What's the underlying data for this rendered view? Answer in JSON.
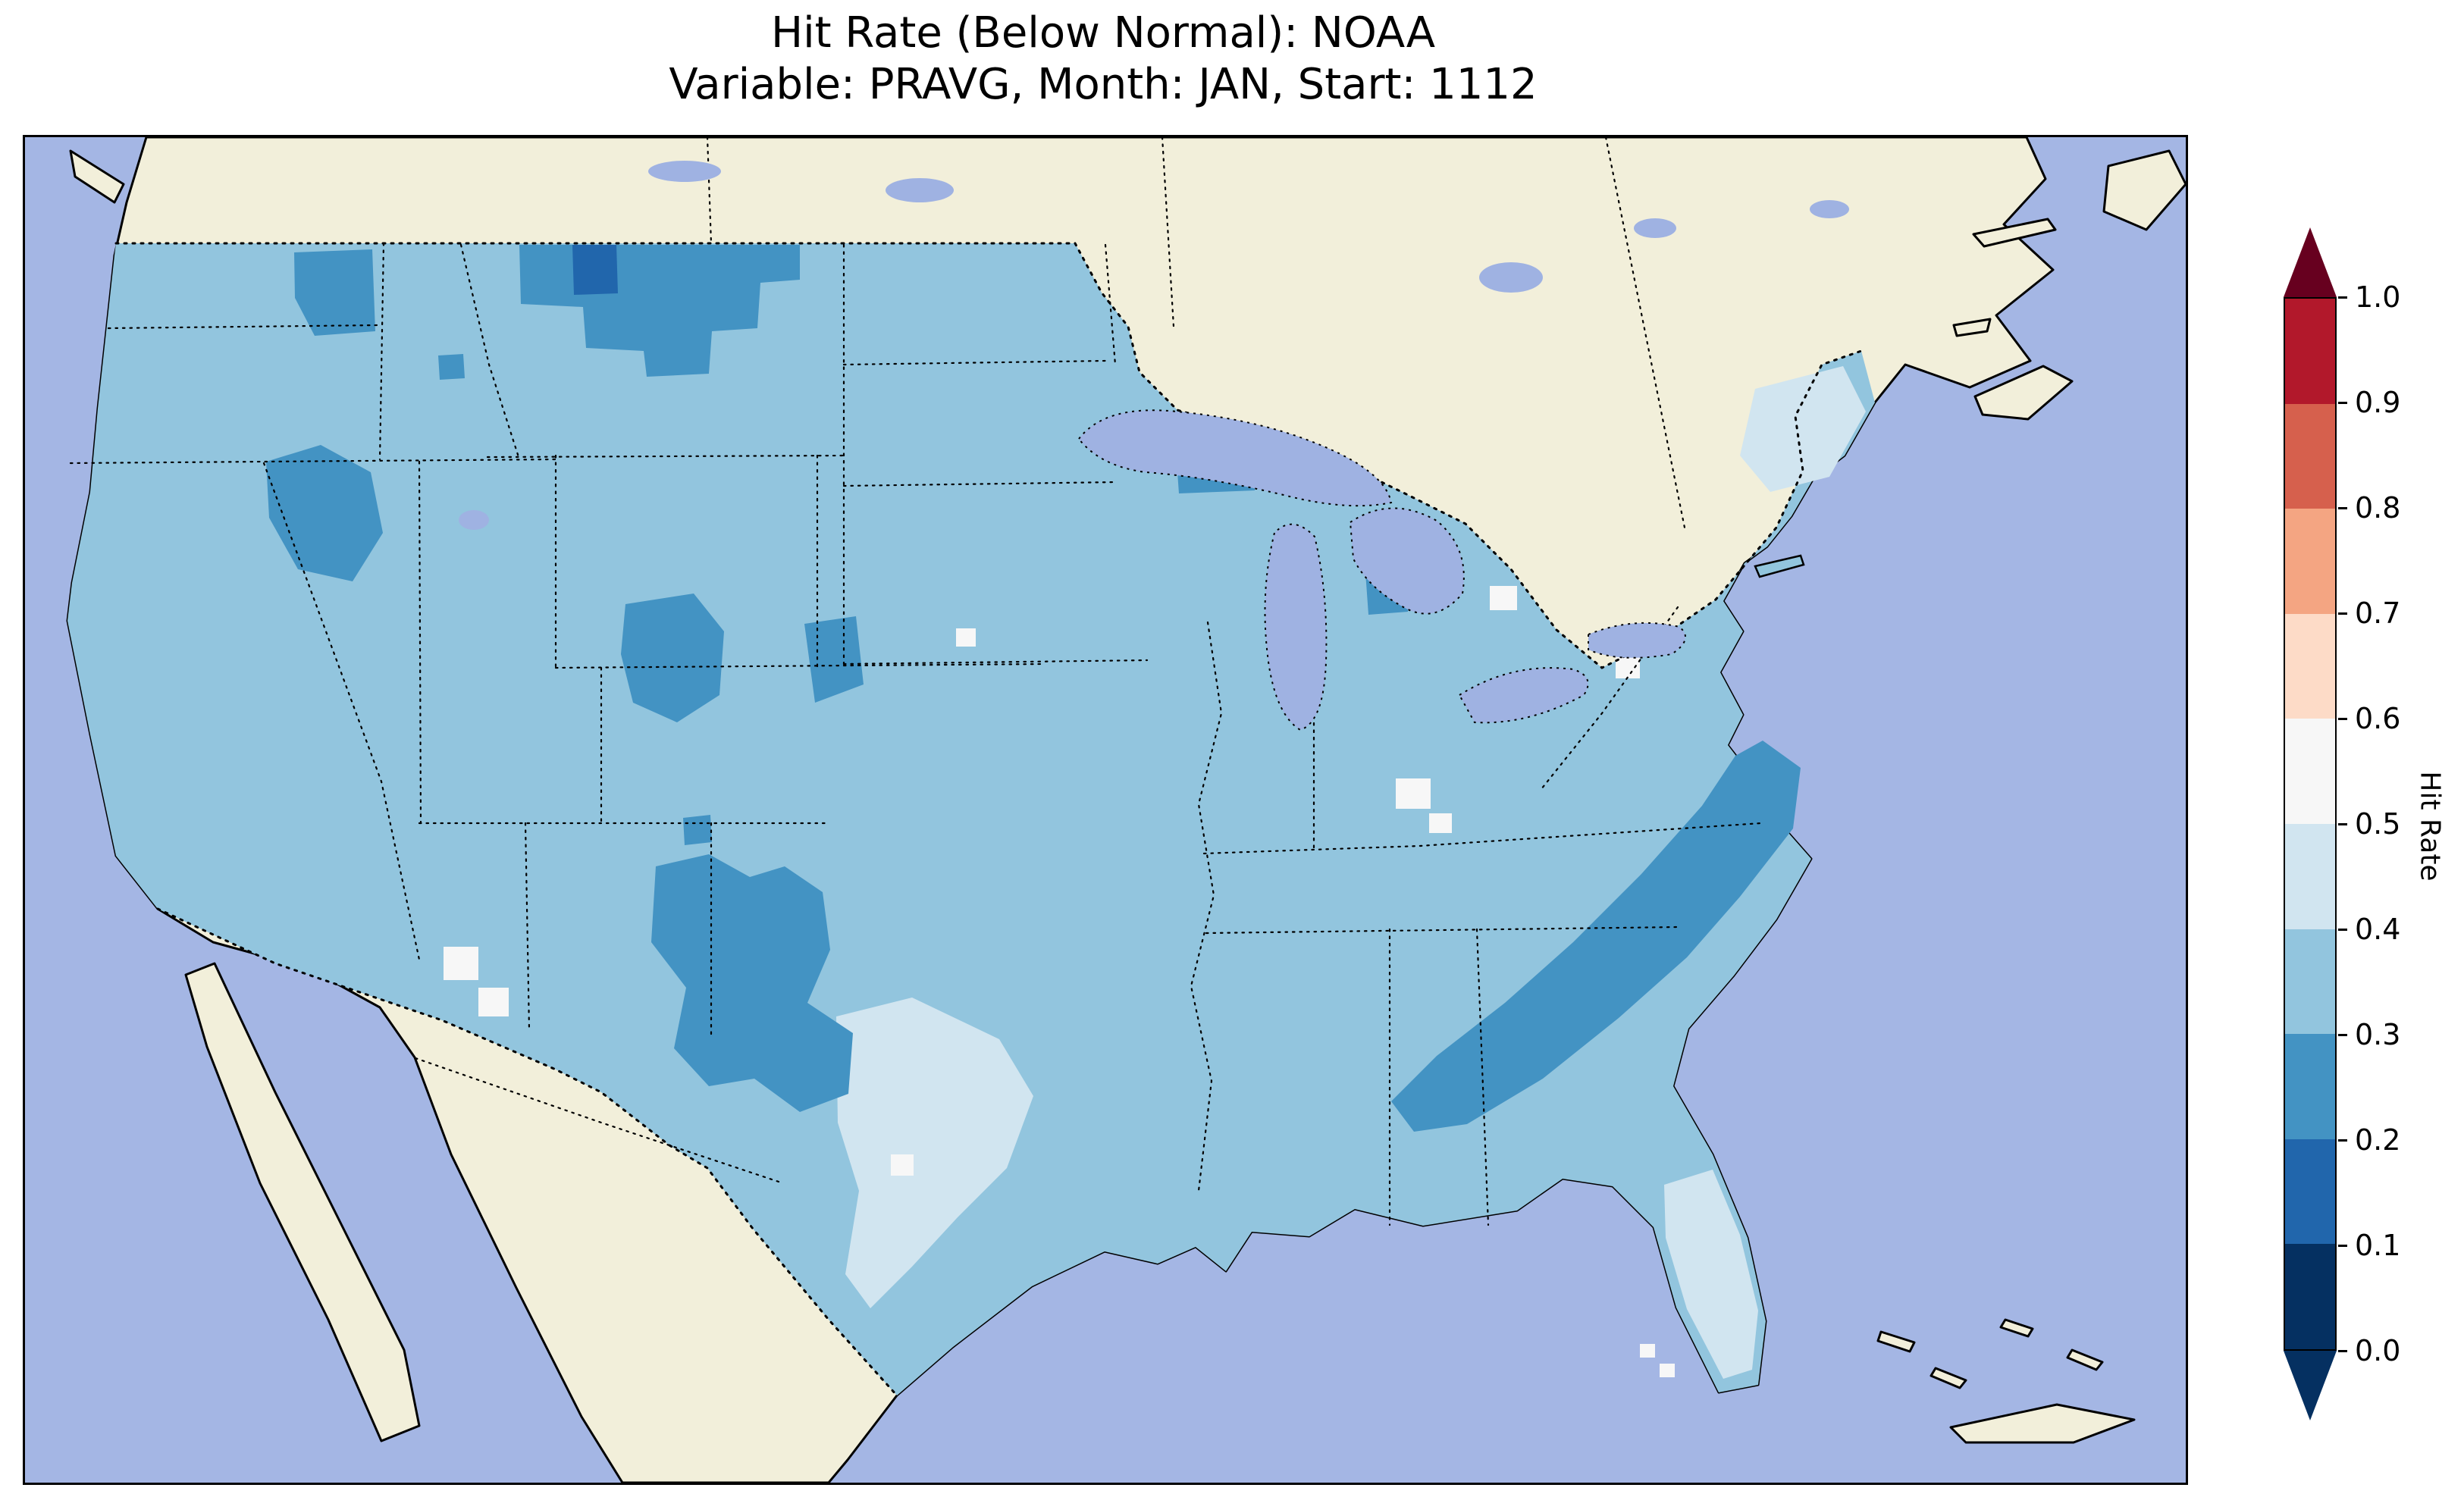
{
  "title": {
    "line1": "Hit Rate (Below Normal): NOAA",
    "line2": "Variable: PRAVG, Month: JAN, Start: 1112"
  },
  "colorbar": {
    "label": "Hit Rate",
    "ticks": [
      "0.0",
      "0.1",
      "0.2",
      "0.3",
      "0.4",
      "0.5",
      "0.6",
      "0.7",
      "0.8",
      "0.9",
      "1.0"
    ],
    "bins": [
      {
        "range": "0.0-0.1",
        "color": "#053061"
      },
      {
        "range": "0.1-0.2",
        "color": "#2166ac"
      },
      {
        "range": "0.2-0.3",
        "color": "#4393c3"
      },
      {
        "range": "0.3-0.4",
        "color": "#92c5de"
      },
      {
        "range": "0.4-0.5",
        "color": "#d1e5f0"
      },
      {
        "range": "0.5-0.6",
        "color": "#f7f7f7"
      },
      {
        "range": "0.6-0.7",
        "color": "#fddbc7"
      },
      {
        "range": "0.7-0.8",
        "color": "#f4a582"
      },
      {
        "range": "0.8-0.9",
        "color": "#d6604d"
      },
      {
        "range": "0.9-1.0",
        "color": "#b2182b"
      }
    ],
    "extend_over_color": "#67001f",
    "extend_under_color": "#053061"
  },
  "map": {
    "colors": {
      "ocean": "#a4b6e4",
      "land": "#f2efda",
      "lake": "#9fb2e2",
      "us_base": "#92c5de",
      "bin_1_2": "#2166ac",
      "bin_2_3": "#4393c3",
      "bin_4_5": "#d1e5f0",
      "bin_5_6": "#f7f7f7",
      "coast": "#000000",
      "border": "#000000"
    }
  },
  "chart_data": {
    "type": "heatmap",
    "title": "Hit Rate (Below Normal): NOAA",
    "subtitle": "Variable: PRAVG, Month: JAN, Start: 1112",
    "colorbar_label": "Hit Rate",
    "colormap": "RdBu (discrete, 0.1 bins, extended both ends)",
    "value_range": [
      0.0,
      1.0
    ],
    "ticks": [
      0.0,
      0.1,
      0.2,
      0.3,
      0.4,
      0.5,
      0.6,
      0.7,
      0.8,
      0.9,
      1.0
    ],
    "geography": "Contiguous United States with surrounding Canada, Mexico, Great Lakes and oceans",
    "regions": [
      {
        "area": "Most of contiguous US (base field)",
        "hit_rate_bin": "0.3-0.4"
      },
      {
        "area": "North-central Montana into western North Dakota",
        "hit_rate_bin": "0.2-0.3"
      },
      {
        "area": "Small square in northern Montana",
        "hit_rate_bin": "0.1-0.2"
      },
      {
        "area": "Eastern Washington patch",
        "hit_rate_bin": "0.2-0.3"
      },
      {
        "area": "Nevada/Utah Great Basin patch",
        "hit_rate_bin": "0.2-0.3"
      },
      {
        "area": "Wyoming/Utah central Rockies patch",
        "hit_rate_bin": "0.2-0.3"
      },
      {
        "area": "Eastern Colorado patch",
        "hit_rate_bin": "0.2-0.3"
      },
      {
        "area": "West Texas / southeastern New Mexico patch",
        "hit_rate_bin": "0.2-0.3"
      },
      {
        "area": "Southern Wisconsin patch",
        "hit_rate_bin": "0.2-0.3"
      },
      {
        "area": "Indiana patch",
        "hit_rate_bin": "0.2-0.3"
      },
      {
        "area": "Coastal plain band: North Carolina through South Carolina into Georgia",
        "hit_rate_bin": "0.2-0.3"
      },
      {
        "area": "South Texas toward the Gulf coast",
        "hit_rate_bin": "0.4-0.5"
      },
      {
        "area": "Florida peninsula",
        "hit_rate_bin": "0.4-0.5"
      },
      {
        "area": "Northern New England",
        "hit_rate_bin": "0.4-0.5"
      },
      {
        "area": "Scattered small spots (Kentucky, NM/AZ border, Michigan thumb, Kansas, south Texas, south Florida)",
        "hit_rate_bin": "0.5-0.6"
      }
    ]
  }
}
